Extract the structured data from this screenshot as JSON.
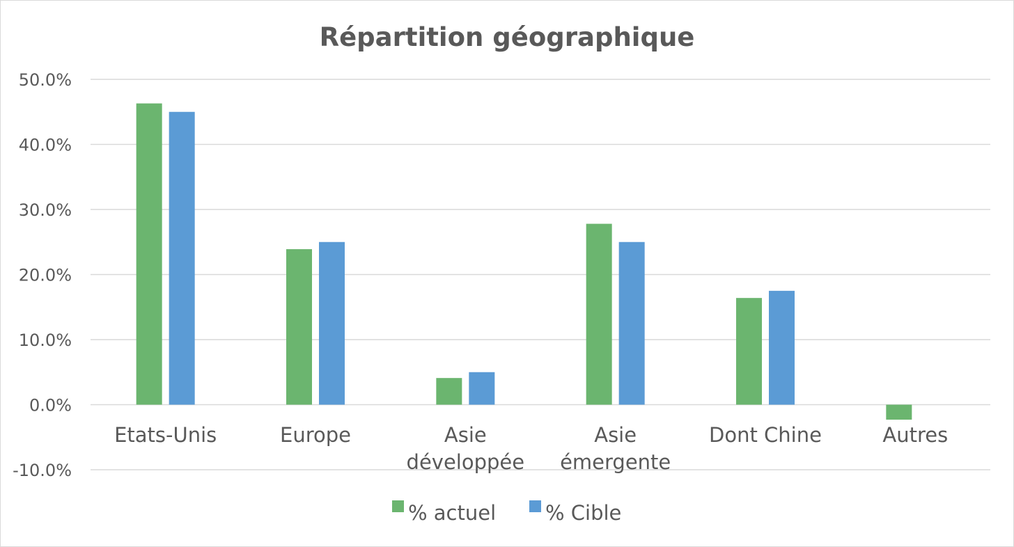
{
  "chart_data": {
    "type": "bar",
    "title": "Répartition géographique",
    "categories": [
      [
        "Etats-Unis"
      ],
      [
        "Europe"
      ],
      [
        "Asie",
        "développée"
      ],
      [
        "Asie",
        "émergente"
      ],
      [
        "Dont Chine"
      ],
      [
        "Autres"
      ]
    ],
    "series": [
      {
        "name": "% actuel",
        "color": "#6bb56f",
        "values": [
          46.3,
          23.9,
          4.1,
          27.8,
          16.4,
          -2.3
        ]
      },
      {
        "name": "% Cible",
        "color": "#5b9bd5",
        "values": [
          45.0,
          25.0,
          5.0,
          25.0,
          17.5,
          null
        ]
      }
    ],
    "y_ticks": [
      "50.0%",
      "40.0%",
      "30.0%",
      "20.0%",
      "10.0%",
      "0.0%",
      "-10.0%"
    ],
    "ylim": [
      -10,
      50
    ],
    "grid": true,
    "legend_position": "bottom"
  }
}
